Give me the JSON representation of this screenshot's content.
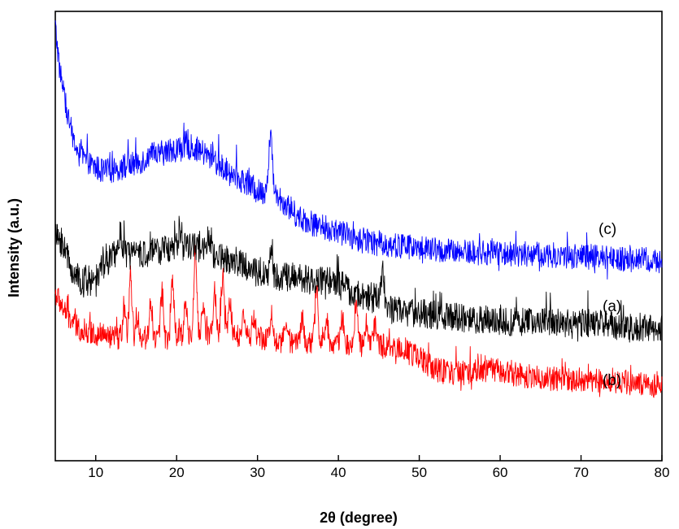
{
  "chart_data": {
    "type": "line",
    "title": "",
    "xlabel": "2θ (degree)",
    "ylabel": "Intensity (a.u.)",
    "xlim": [
      5,
      80
    ],
    "ylim": [
      0,
      100
    ],
    "x_ticks": [
      10,
      20,
      30,
      40,
      50,
      60,
      70,
      80
    ],
    "y_ticks_visible": false,
    "grid": false,
    "legend": "none",
    "series": [
      {
        "name": "(c)",
        "color": "#0000ff",
        "noise": 3.2,
        "points": [
          [
            5,
            100
          ],
          [
            5.5,
            90
          ],
          [
            6.5,
            78
          ],
          [
            7.5,
            70
          ],
          [
            9,
            66
          ],
          [
            11,
            64
          ],
          [
            13,
            65
          ],
          [
            15,
            66
          ],
          [
            17,
            68
          ],
          [
            19,
            69
          ],
          [
            21,
            70
          ],
          [
            22,
            70
          ],
          [
            23,
            69
          ],
          [
            25,
            66
          ],
          [
            27,
            63
          ],
          [
            29,
            61
          ],
          [
            30,
            59
          ],
          [
            31,
            59
          ],
          [
            31.6,
            66
          ],
          [
            32.2,
            59
          ],
          [
            33,
            57
          ],
          [
            34,
            55
          ],
          [
            35,
            53
          ],
          [
            37,
            51
          ],
          [
            40,
            49
          ],
          [
            43,
            47
          ],
          [
            46,
            46
          ],
          [
            50,
            45
          ],
          [
            55,
            44
          ],
          [
            60,
            44
          ],
          [
            65,
            43.5
          ],
          [
            70,
            43
          ],
          [
            75,
            42.5
          ],
          [
            80,
            42
          ]
        ],
        "peaks": [
          [
            31.6,
            7
          ],
          [
            24.5,
            2
          ]
        ]
      },
      {
        "name": "(a)",
        "color": "#000000",
        "noise": 3.6,
        "points": [
          [
            5,
            48
          ],
          [
            6,
            46
          ],
          [
            7,
            40
          ],
          [
            8,
            37
          ],
          [
            9,
            36
          ],
          [
            10,
            38
          ],
          [
            11,
            41
          ],
          [
            12,
            43
          ],
          [
            13,
            44
          ],
          [
            15,
            43
          ],
          [
            17,
            44
          ],
          [
            19,
            45
          ],
          [
            21,
            46
          ],
          [
            23,
            45
          ],
          [
            25,
            43
          ],
          [
            27,
            42
          ],
          [
            29,
            40
          ],
          [
            31,
            38
          ],
          [
            33,
            38
          ],
          [
            35,
            38
          ],
          [
            37,
            37
          ],
          [
            39,
            37
          ],
          [
            41,
            35
          ],
          [
            43,
            33
          ],
          [
            45,
            33
          ],
          [
            46,
            30
          ],
          [
            50,
            29
          ],
          [
            55,
            28
          ],
          [
            60,
            27
          ],
          [
            65,
            27
          ],
          [
            70,
            26.5
          ],
          [
            75,
            26
          ],
          [
            80,
            25
          ]
        ],
        "peaks": [
          [
            13,
            5
          ],
          [
            20.5,
            4
          ],
          [
            24,
            4
          ],
          [
            31.7,
            6
          ],
          [
            45.5,
            9
          ]
        ]
      },
      {
        "name": "(b)",
        "color": "#ff0000",
        "noise": 3.0,
        "points": [
          [
            5,
            34
          ],
          [
            6,
            30
          ],
          [
            7,
            27
          ],
          [
            8,
            25
          ],
          [
            10,
            24
          ],
          [
            12,
            23
          ],
          [
            14,
            23
          ],
          [
            16,
            23
          ],
          [
            18,
            23
          ],
          [
            20,
            23
          ],
          [
            22,
            24
          ],
          [
            24,
            24
          ],
          [
            26,
            24
          ],
          [
            28,
            23
          ],
          [
            30,
            23
          ],
          [
            32,
            22
          ],
          [
            34,
            22
          ],
          [
            36,
            22
          ],
          [
            38,
            22
          ],
          [
            40,
            22
          ],
          [
            42,
            21
          ],
          [
            44,
            21
          ],
          [
            46,
            21
          ],
          [
            48,
            20
          ],
          [
            50,
            18
          ],
          [
            52,
            15
          ],
          [
            55,
            14
          ],
          [
            58,
            15
          ],
          [
            60,
            15
          ],
          [
            62,
            14
          ],
          [
            65,
            13
          ],
          [
            70,
            12.5
          ],
          [
            75,
            12
          ],
          [
            80,
            11
          ]
        ],
        "peaks": [
          [
            13.5,
            6
          ],
          [
            14.3,
            14
          ],
          [
            15.2,
            5
          ],
          [
            16.8,
            9
          ],
          [
            18.2,
            11
          ],
          [
            19.5,
            14
          ],
          [
            21.1,
            8
          ],
          [
            22.3,
            20
          ],
          [
            23.3,
            6
          ],
          [
            24.7,
            10
          ],
          [
            25.7,
            14
          ],
          [
            26.6,
            8
          ],
          [
            28.3,
            6
          ],
          [
            29.5,
            5
          ],
          [
            31.7,
            7
          ],
          [
            33.5,
            5
          ],
          [
            35.5,
            6
          ],
          [
            37.3,
            13
          ],
          [
            38.5,
            6
          ],
          [
            40.5,
            6
          ],
          [
            42.2,
            11
          ],
          [
            43.5,
            6
          ],
          [
            44.5,
            5
          ]
        ]
      }
    ]
  }
}
